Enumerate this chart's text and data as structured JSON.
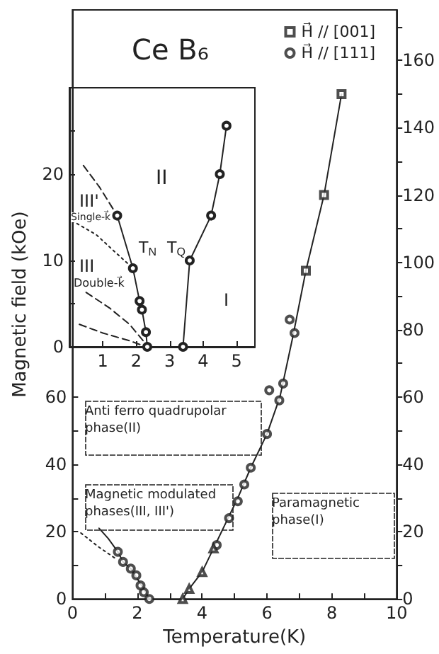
{
  "chart_data": [
    {
      "type": "scatter",
      "title": "Ce B₆",
      "xlabel": "Temperature(K)",
      "ylabel": "Magnetic field (kOe)",
      "xlim": [
        0,
        10
      ],
      "xticks": [
        0,
        {
          "value": 1,
          "label": null
        },
        2,
        {
          "value": 3,
          "label": null
        },
        4,
        {
          "value": 5,
          "label": null
        },
        6,
        {
          "value": 7,
          "label": null
        },
        8,
        {
          "value": 9,
          "label": null
        },
        10
      ],
      "ylim": [
        0,
        175
      ],
      "yticks": [
        0,
        {
          "value": 10,
          "label": null
        },
        20,
        {
          "value": 30,
          "label": null
        },
        40,
        {
          "value": 50,
          "label": null
        },
        60
      ],
      "y2lim": [
        0,
        175
      ],
      "y2ticks": [
        0,
        {
          "value": 10,
          "label": null
        },
        20,
        {
          "value": 30,
          "label": null
        },
        40,
        {
          "value": 50,
          "label": null
        },
        60,
        {
          "value": 70,
          "label": null
        },
        80,
        {
          "value": 90,
          "label": null
        },
        100,
        {
          "value": 110,
          "label": null
        },
        120,
        {
          "value": 130,
          "label": null
        },
        140,
        {
          "value": 150,
          "label": null
        },
        160,
        {
          "value": 170,
          "label": null
        }
      ],
      "legend": "top right",
      "annotations": [
        "Anti ferro quadrupolar phase(II)",
        "Magnetic modulated phases(III, III')",
        "Paramagnetic phase(I)"
      ],
      "series": [
        {
          "type": "line",
          "color": "#222222",
          "marker": "none",
          "line_style": "solid",
          "x": [
            3.4,
            3.6,
            4.0,
            4.4,
            4.8,
            5.1,
            5.5,
            6.0,
            6.4,
            6.8,
            7.2,
            7.76,
            8.3
          ],
          "values": [
            0,
            3,
            8,
            16,
            24,
            30,
            39,
            49,
            60,
            78,
            97.5,
            120,
            150
          ]
        },
        {
          "type": "line",
          "color": "#222222",
          "marker": "none",
          "line_style": "solid",
          "x": [
            2.37,
            2.2,
            2.0,
            1.8,
            1.56,
            1.4,
            1.1,
            0.82
          ],
          "values": [
            0,
            3,
            6,
            9,
            11,
            14,
            18,
            21
          ]
        },
        {
          "type": "line",
          "color": "#222222",
          "marker": "none",
          "line_style": "dotted",
          "x": [
            0.26,
            0.8,
            1.33
          ],
          "values": [
            19.6,
            15.5,
            12
          ]
        },
        {
          "type": "scatter",
          "name": "H⃗ // [001]",
          "color": "#222222",
          "marker": "square",
          "x": [
            7.2,
            7.76,
            8.3
          ],
          "values": [
            97.5,
            120,
            150
          ]
        },
        {
          "type": "scatter",
          "name": "H⃗ // [111]",
          "color": "#222222",
          "marker": "circle",
          "x": [
            4.45,
            4.83,
            5.1,
            5.3,
            5.5,
            6.0,
            6.07,
            6.38,
            6.5,
            6.7,
            6.85,
            2.37,
            2.2,
            2.1,
            1.97,
            1.8,
            1.56,
            1.4
          ],
          "values": [
            16,
            24,
            29,
            34,
            39,
            49,
            62,
            59,
            64,
            83,
            79,
            0,
            2,
            4,
            7,
            9,
            11,
            14
          ]
        },
        {
          "type": "scatter",
          "color": "#222222",
          "marker": "triangle",
          "x": [
            3.4,
            3.6,
            4.0,
            4.35
          ],
          "values": [
            0,
            3,
            8,
            15
          ]
        }
      ]
    },
    {
      "type": "scatter",
      "xlim": [
        0,
        5.55
      ],
      "xticks": [
        {
          "value": 0,
          "label": null
        },
        1,
        2,
        3,
        4,
        5
      ],
      "ylim": [
        0,
        30
      ],
      "yticks": [
        0,
        {
          "value": 5,
          "label": null
        },
        10,
        {
          "value": 15,
          "label": null
        },
        20,
        {
          "value": 25,
          "label": null
        }
      ],
      "annotations": [
        "II",
        "III'",
        "Single-k⃗",
        "III",
        "Double-k⃗",
        "T$_{N}$",
        "T$_{Q}$",
        "I"
      ],
      "series": [
        {
          "type": "line",
          "color": "#222222",
          "marker": "circle",
          "line_style": "solid",
          "x": [
            3.4,
            3.6,
            4.24,
            4.5,
            4.7
          ],
          "values": [
            0,
            10,
            15.2,
            20,
            25.6
          ]
        },
        {
          "type": "line",
          "color": "#222222",
          "marker": "circle",
          "line_style": "solid",
          "x": [
            2.33,
            2.29,
            2.17,
            2.1,
            1.9,
            1.43
          ],
          "values": [
            0,
            1.7,
            4.3,
            5.3,
            9.1,
            15.2
          ]
        },
        {
          "type": "line",
          "color": "#222222",
          "marker": "none",
          "line_style": "dashed",
          "x": [
            0.42,
            0.9,
            1.43
          ],
          "values": [
            21,
            18.5,
            15.2
          ]
        },
        {
          "type": "line",
          "color": "#222222",
          "marker": "none",
          "line_style": "dotted",
          "x": [
            0.08,
            0.8,
            1.36,
            1.9
          ],
          "values": [
            14.6,
            13,
            11,
            9.1
          ]
        },
        {
          "type": "line",
          "color": "#222222",
          "marker": "none",
          "line_style": "dashed",
          "x": [
            0.5,
            1.2,
            1.8,
            2.25
          ],
          "values": [
            6.3,
            4.5,
            2.6,
            0.5
          ]
        },
        {
          "type": "line",
          "color": "#222222",
          "marker": "none",
          "line_style": "dashed",
          "x": [
            0.3,
            1.0,
            1.8,
            2.3
          ],
          "values": [
            2.6,
            1.6,
            0.7,
            0
          ]
        }
      ]
    }
  ]
}
